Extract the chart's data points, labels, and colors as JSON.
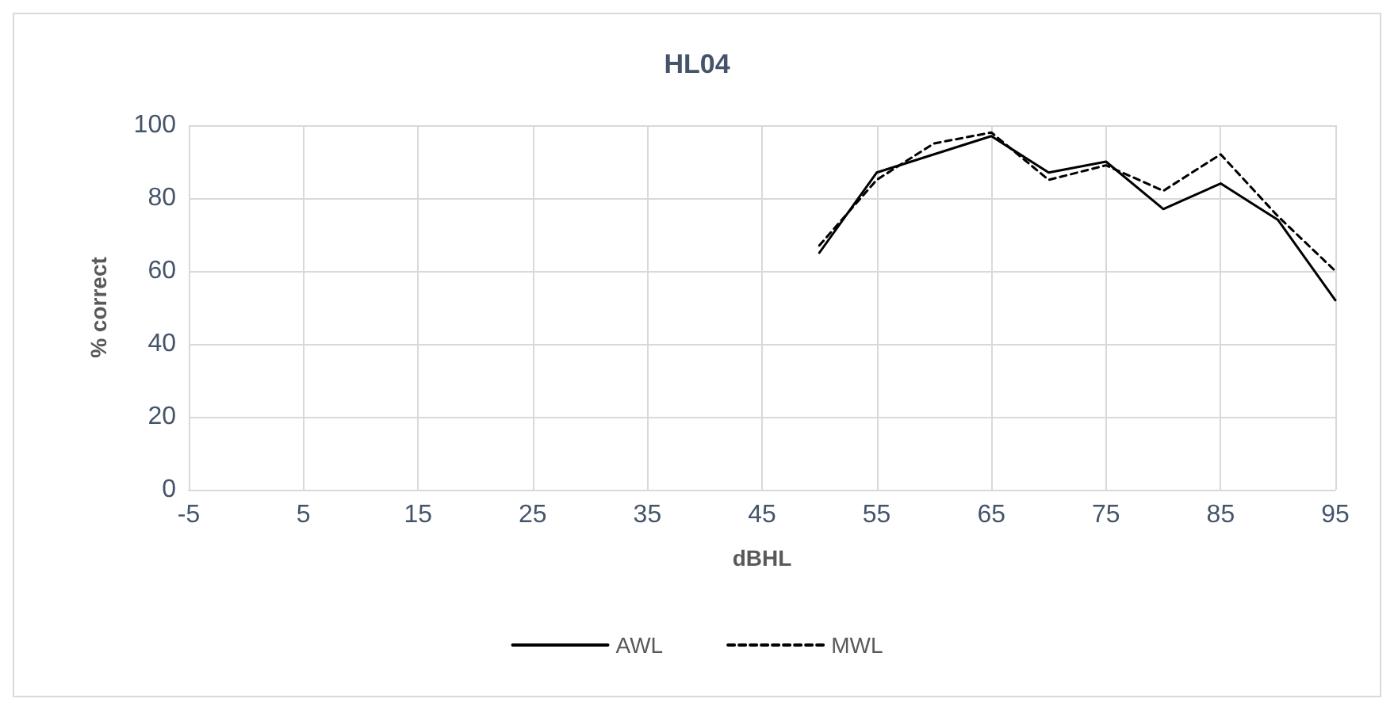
{
  "chart_data": {
    "type": "line",
    "title": "HL04",
    "xlabel": "dBHL",
    "ylabel": "% correct",
    "x": [
      50,
      55,
      60,
      65,
      70,
      75,
      80,
      85,
      90,
      95
    ],
    "series": [
      {
        "name": "AWL",
        "color": "#000000",
        "line_style": "solid",
        "values": [
          65,
          87,
          92,
          97,
          87,
          90,
          77,
          84,
          74,
          52
        ]
      },
      {
        "name": "MWL",
        "color": "#000000",
        "line_style": "dashed",
        "values": [
          67,
          85,
          95,
          98,
          85,
          89,
          82,
          92,
          75,
          60
        ]
      }
    ],
    "xlim": [
      -5,
      95
    ],
    "xticks": [
      -5,
      5,
      15,
      25,
      35,
      45,
      55,
      65,
      75,
      85,
      95
    ],
    "ylim": [
      0,
      100
    ],
    "yticks": [
      0,
      20,
      40,
      60,
      80,
      100
    ],
    "grid": true,
    "legend": "bottom",
    "marker": "none"
  }
}
